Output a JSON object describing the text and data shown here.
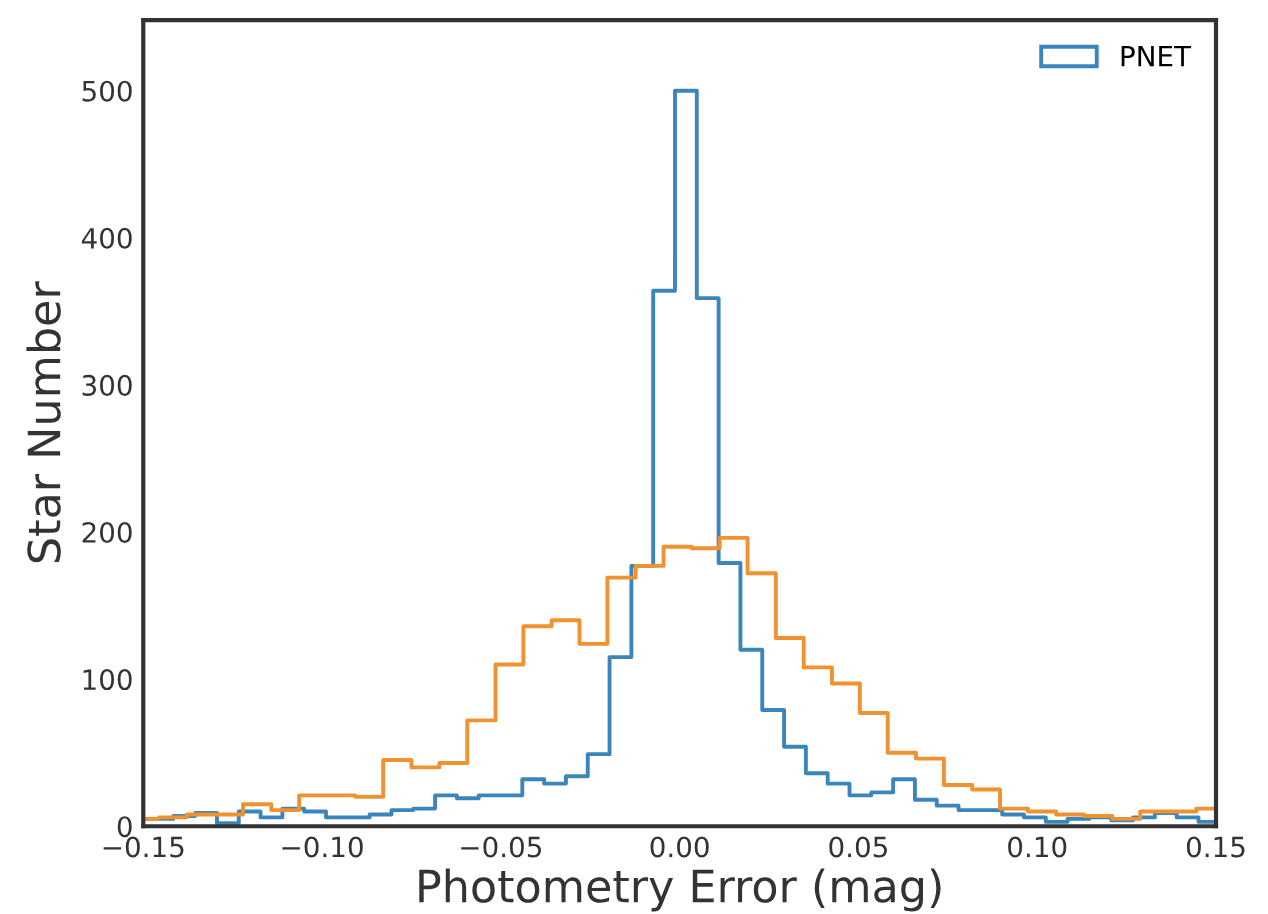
{
  "chart_data": {
    "type": "step",
    "xlabel": "Photometry Error (mag)",
    "ylabel": "Star Number",
    "xlim": [
      -0.15,
      0.15
    ],
    "ylim": [
      0,
      548
    ],
    "xticks": [
      {
        "value": -0.15,
        "label": "−0.15"
      },
      {
        "value": -0.1,
        "label": "−0.10"
      },
      {
        "value": -0.05,
        "label": "−0.05"
      },
      {
        "value": 0,
        "label": "0.00"
      },
      {
        "value": 0.05,
        "label": "0.05"
      },
      {
        "value": 0.1,
        "label": "0.10"
      },
      {
        "value": 0.15,
        "label": "0.15"
      }
    ],
    "yticks": [
      0,
      100,
      200,
      300,
      400,
      500
    ],
    "grid": false,
    "legend": "top right",
    "series": [
      {
        "name": "PNET",
        "color": "#3a86bb",
        "x": [
          -0.15,
          -0.1477,
          -0.1416,
          -0.1355,
          -0.1294,
          -0.1233,
          -0.1172,
          -0.1111,
          -0.105,
          -0.0989,
          -0.0928,
          -0.0867,
          -0.0806,
          -0.0745,
          -0.0684,
          -0.0623,
          -0.0562,
          -0.0501,
          -0.044,
          -0.0379,
          -0.0318,
          -0.0257,
          -0.0196,
          -0.0135,
          -0.0074,
          -0.0013,
          0.0048,
          0.0109,
          0.017,
          0.0231,
          0.0292,
          0.0353,
          0.0414,
          0.0475,
          0.0536,
          0.0597,
          0.0658,
          0.0719,
          0.078,
          0.0841,
          0.0902,
          0.0963,
          0.1024,
          0.1085,
          0.1146,
          0.1207,
          0.1268,
          0.1329,
          0.139,
          0.1451,
          0.15
        ],
        "values": [
          5,
          5,
          7,
          9,
          2,
          10,
          6,
          12,
          10,
          6,
          6,
          8,
          11,
          12,
          21,
          19,
          21,
          21,
          32,
          29,
          34,
          49,
          115,
          177,
          364,
          500,
          359,
          179,
          120,
          79,
          54,
          36,
          29,
          21,
          23,
          32,
          18,
          14,
          11,
          11,
          8,
          6,
          3,
          5,
          6,
          4,
          6,
          9,
          6,
          3,
          3
        ]
      },
      {
        "color": "#f0922f",
        "x": [
          -0.15,
          -0.1456,
          -0.1378,
          -0.1299,
          -0.1221,
          -0.1142,
          -0.1064,
          -0.0986,
          -0.0907,
          -0.0829,
          -0.075,
          -0.0672,
          -0.0594,
          -0.0515,
          -0.0437,
          -0.0358,
          -0.028,
          -0.0202,
          -0.0123,
          -0.0045,
          0.0034,
          0.0112,
          0.019,
          0.0269,
          0.0347,
          0.0426,
          0.0504,
          0.0582,
          0.0661,
          0.0739,
          0.0818,
          0.0896,
          0.0974,
          0.1053,
          0.1131,
          0.121,
          0.1288,
          0.1366,
          0.1445,
          0.15
        ],
        "values": [
          5,
          6,
          8,
          8,
          15,
          11,
          21,
          21,
          20,
          45,
          40,
          43,
          72,
          110,
          136,
          140,
          124,
          169,
          177,
          190,
          189,
          196,
          172,
          128,
          108,
          97,
          77,
          50,
          46,
          28,
          25,
          12,
          10,
          8,
          7,
          5,
          10,
          10,
          12,
          12
        ]
      }
    ]
  }
}
